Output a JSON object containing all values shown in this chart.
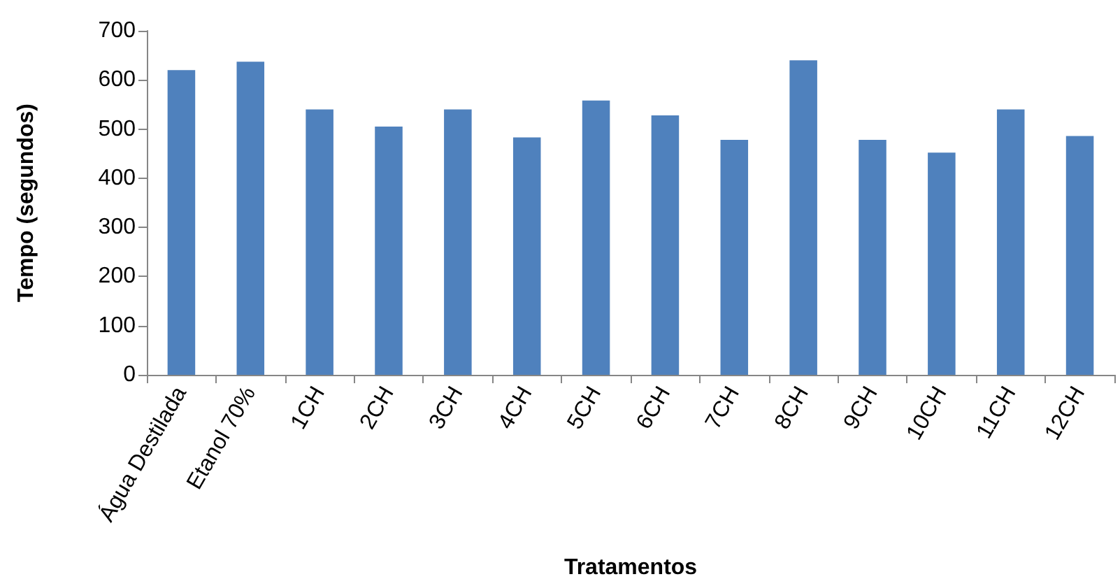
{
  "chart_data": {
    "type": "bar",
    "xlabel": "Tratamentos",
    "ylabel": "Tempo (segundos)",
    "categories": [
      "Água Destilada",
      "Etanol 70%",
      "1CH",
      "2CH",
      "3CH",
      "4CH",
      "5CH",
      "6CH",
      "7CH",
      "8CH",
      "9CH",
      "10CH",
      "11CH",
      "12CH"
    ],
    "values": [
      620,
      637,
      540,
      505,
      540,
      483,
      558,
      528,
      478,
      640,
      478,
      452,
      540,
      486
    ],
    "color": "#4f81bd",
    "ylim": [
      0,
      700
    ],
    "yticks": [
      0,
      100,
      200,
      300,
      400,
      500,
      600,
      700
    ],
    "grid": false
  }
}
